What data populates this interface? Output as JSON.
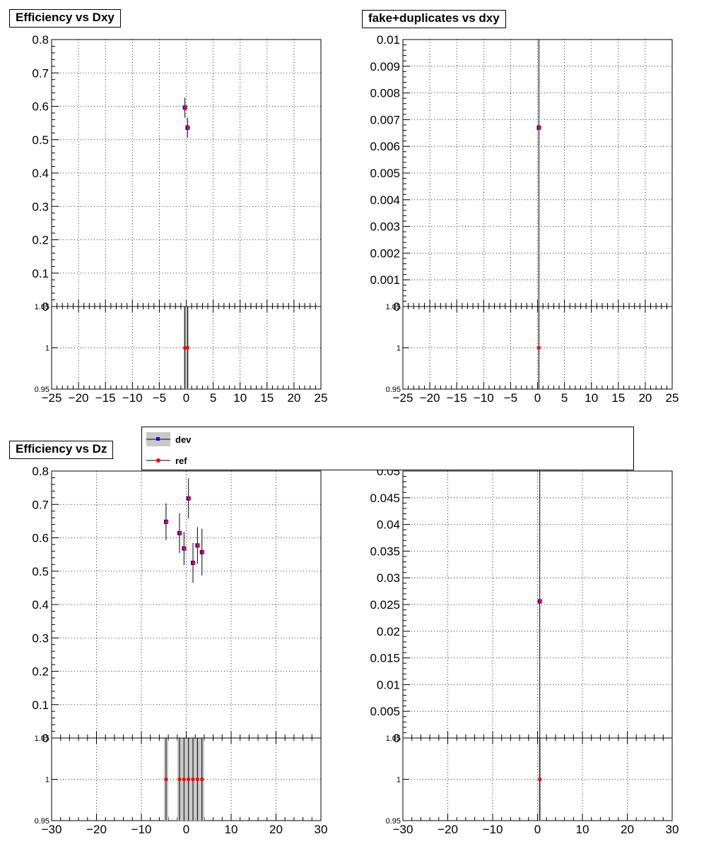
{
  "titles": {
    "p1": "Efficiency vs Dxy",
    "p2": "fake+duplicates vs dxy",
    "p3": "Efficiency vs Dz"
  },
  "legend": {
    "dev": {
      "label": "dev",
      "marker": "square",
      "color": "#0000ff",
      "band": "#c8c8c8"
    },
    "ref": {
      "label": "ref",
      "marker": "circle",
      "color": "#ff0000"
    }
  },
  "chart_data": [
    {
      "type": "scatter",
      "title": "Efficiency vs Dxy",
      "xlim": [
        -25,
        25
      ],
      "ylim": [
        0,
        0.8
      ],
      "x_ticks": [
        "−25",
        "−20",
        "−15",
        "−10",
        "−5",
        "0",
        "5",
        "10",
        "15",
        "20",
        "25"
      ],
      "y_ticks": [
        "0",
        "0.1",
        "0.2",
        "0.3",
        "0.4",
        "0.5",
        "0.6",
        "0.7",
        "0.8"
      ],
      "grid": true,
      "series": [
        {
          "name": "dev",
          "x": [
            -0.25,
            0.25
          ],
          "y": [
            0.596,
            0.536
          ],
          "err": [
            0.03,
            0.03
          ]
        },
        {
          "name": "ref",
          "x": [
            -0.25,
            0.25
          ],
          "y": [
            0.596,
            0.536
          ],
          "err": [
            0.03,
            0.03
          ]
        }
      ],
      "ratio": {
        "ylim": [
          0.95,
          1.05
        ],
        "y_ticks": [
          "0.95",
          "1",
          "1.05"
        ],
        "x": [
          -0.25,
          0.25
        ],
        "y": [
          1,
          1
        ],
        "band_halfwidth": [
          0.25,
          0.25
        ]
      }
    },
    {
      "type": "scatter",
      "title": "fake+duplicates vs dxy",
      "xlim": [
        -25,
        25
      ],
      "ylim": [
        0,
        0.01
      ],
      "x_ticks": [
        "−25",
        "−20",
        "−15",
        "−10",
        "−5",
        "0",
        "5",
        "10",
        "15",
        "20",
        "25"
      ],
      "y_ticks": [
        "0",
        "0.001",
        "0.002",
        "0.003",
        "0.004",
        "0.005",
        "0.006",
        "0.007",
        "0.008",
        "0.009",
        "0.01"
      ],
      "grid": true,
      "series": [
        {
          "name": "dev",
          "x": [
            0.25
          ],
          "y": [
            0.0067
          ],
          "err": [
            0.0067
          ]
        },
        {
          "name": "ref",
          "x": [
            0.25
          ],
          "y": [
            0.0067
          ],
          "err": [
            0.0067
          ]
        }
      ],
      "ratio": {
        "ylim": [
          0.95,
          1.05
        ],
        "y_ticks": [
          "0.95",
          "1",
          "1.05"
        ],
        "x": [
          0.25
        ],
        "y": [
          1
        ],
        "band_halfwidth": [
          0.1
        ]
      }
    },
    {
      "type": "scatter",
      "title": "Efficiency vs Dz",
      "xlim": [
        -30,
        30
      ],
      "ylim": [
        0,
        0.8
      ],
      "x_ticks": [
        "−30",
        "−20",
        "−10",
        "0",
        "10",
        "20",
        "30"
      ],
      "y_ticks": [
        "0",
        "0.1",
        "0.2",
        "0.3",
        "0.4",
        "0.5",
        "0.6",
        "0.7",
        "0.8"
      ],
      "grid": true,
      "series": [
        {
          "name": "dev",
          "x": [
            -4.5,
            -1.5,
            -0.5,
            0.5,
            1.5,
            2.5,
            3.5
          ],
          "y": [
            0.648,
            0.614,
            0.568,
            0.718,
            0.525,
            0.577,
            0.557
          ],
          "err": [
            0.055,
            0.06,
            0.05,
            0.06,
            0.06,
            0.055,
            0.07
          ]
        },
        {
          "name": "ref",
          "x": [
            -4.5,
            -1.5,
            -0.5,
            0.5,
            1.5,
            2.5,
            3.5
          ],
          "y": [
            0.648,
            0.614,
            0.568,
            0.718,
            0.525,
            0.577,
            0.557
          ],
          "err": [
            0.055,
            0.06,
            0.05,
            0.06,
            0.06,
            0.055,
            0.07
          ]
        }
      ],
      "ratio": {
        "ylim": [
          0.95,
          1.05
        ],
        "y_ticks": [
          "0.95",
          "1",
          "1.05"
        ],
        "x": [
          -4.5,
          -1.5,
          -0.5,
          0.5,
          1.5,
          2.5,
          3.5
        ],
        "y": [
          1,
          1,
          1,
          1,
          1,
          1,
          1
        ],
        "band_halfwidth": [
          0.5,
          0.5,
          0.5,
          0.5,
          0.5,
          0.5,
          0.5
        ]
      }
    },
    {
      "type": "scatter",
      "title": "",
      "xlim": [
        -30,
        30
      ],
      "ylim": [
        0,
        0.05
      ],
      "x_ticks": [
        "−30",
        "−20",
        "−10",
        "0",
        "10",
        "20",
        "30"
      ],
      "y_ticks": [
        "0",
        "0.005",
        "0.01",
        "0.015",
        "0.02",
        "0.025",
        "0.03",
        "0.035",
        "0.04",
        "0.045",
        "0.05"
      ],
      "grid": true,
      "series": [
        {
          "name": "dev",
          "x": [
            0.5
          ],
          "y": [
            0.0256
          ],
          "err": [
            0.0256
          ]
        },
        {
          "name": "ref",
          "x": [
            0.5
          ],
          "y": [
            0.0256
          ],
          "err": [
            0.0256
          ]
        }
      ],
      "ratio": {
        "ylim": [
          0.95,
          1.05
        ],
        "y_ticks": [
          "0.95",
          "1",
          "1.05"
        ],
        "x": [
          0.5
        ],
        "y": [
          1
        ],
        "band_halfwidth": [
          0.3
        ]
      }
    }
  ]
}
